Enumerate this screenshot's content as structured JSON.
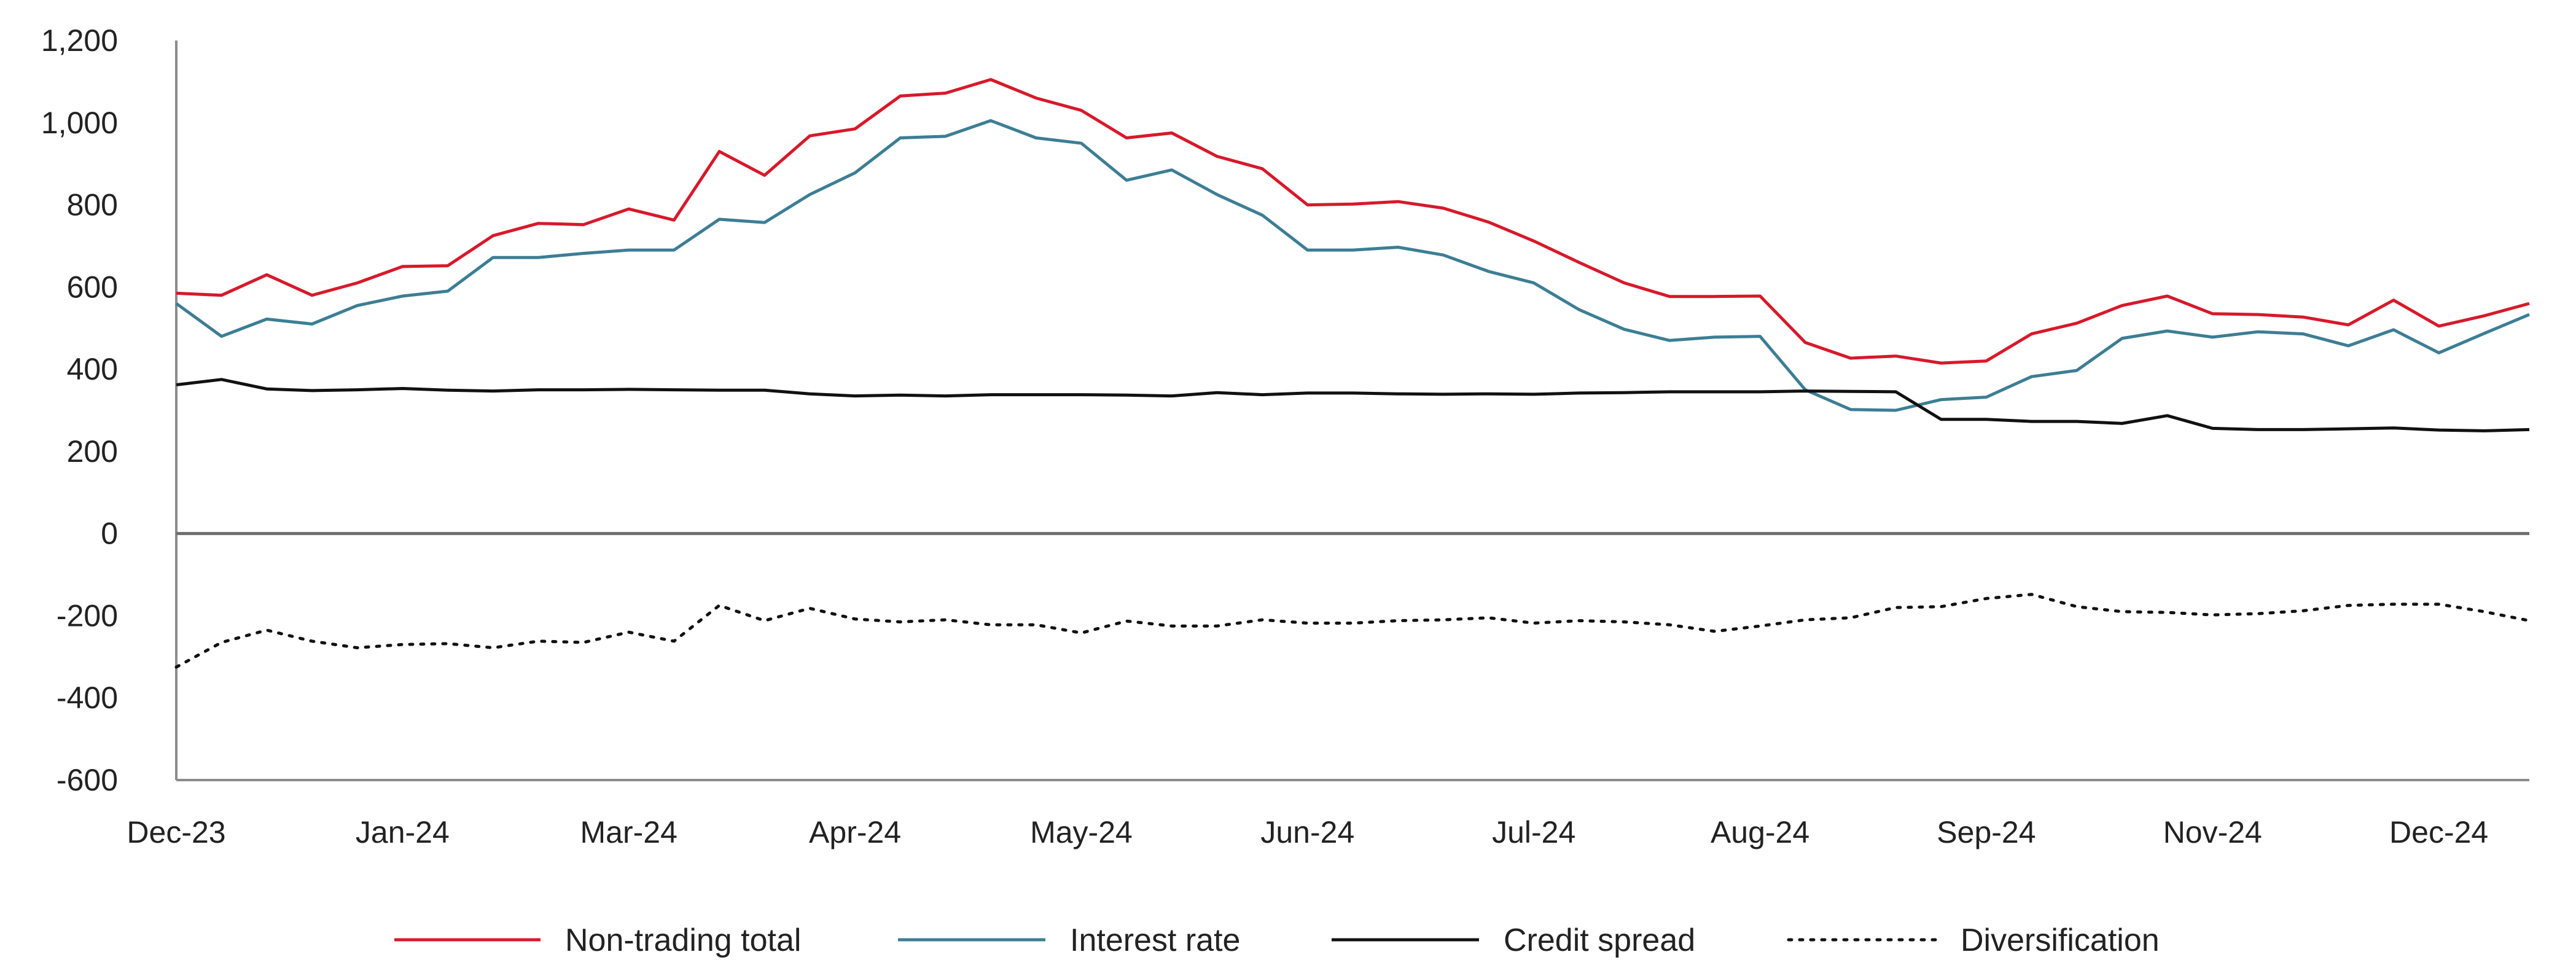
{
  "chart_data": {
    "type": "line",
    "title": "",
    "xlabel": "",
    "ylabel": "",
    "ylim": [
      -600,
      1200
    ],
    "yticks": [
      -600,
      -400,
      -200,
      0,
      200,
      400,
      600,
      800,
      1000,
      1200
    ],
    "ytick_labels": [
      "-600",
      "-400",
      "-200",
      "0",
      "200",
      "400",
      "600",
      "800",
      "1,000",
      "1,200"
    ],
    "x_labels": [
      "Dec-23",
      "Jan-24",
      "Mar-24",
      "Apr-24",
      "May-24",
      "Jun-24",
      "Jul-24",
      "Aug-24",
      "Sep-24",
      "Nov-24",
      "Dec-24"
    ],
    "x_label_positions": [
      0,
      5,
      10,
      15,
      20,
      25,
      30,
      35,
      40,
      45,
      50
    ],
    "x_count": 53,
    "grid": false,
    "zero_line": true,
    "legend_position": "bottom",
    "series": [
      {
        "name": "Non-trading total",
        "color": "#d7192a",
        "style": "solid",
        "values": [
          585,
          580,
          630,
          580,
          610,
          650,
          652,
          725,
          755,
          752,
          790,
          763,
          930,
          872,
          968,
          985,
          1065,
          1072,
          1105,
          1060,
          1030,
          963,
          975,
          918,
          888,
          800,
          802,
          808,
          792,
          758,
          712,
          660,
          610,
          577,
          577,
          578,
          465,
          427,
          432,
          415,
          420,
          486,
          512,
          555,
          578,
          535,
          533,
          527,
          508,
          568,
          505,
          530,
          560
        ]
      },
      {
        "name": "Interest rate",
        "color": "#3c7e94",
        "style": "solid",
        "values": [
          560,
          480,
          522,
          510,
          555,
          578,
          590,
          672,
          672,
          682,
          690,
          690,
          765,
          757,
          825,
          878,
          963,
          967,
          1005,
          963,
          950,
          860,
          885,
          825,
          775,
          690,
          690,
          697,
          678,
          638,
          610,
          545,
          497,
          470,
          478,
          480,
          350,
          302,
          300,
          326,
          332,
          382,
          397,
          475,
          493,
          478,
          491,
          486,
          457,
          496,
          440,
          487,
          533
        ]
      },
      {
        "name": "Credit spread",
        "color": "#111111",
        "style": "solid",
        "values": [
          362,
          375,
          352,
          348,
          350,
          353,
          349,
          347,
          350,
          350,
          351,
          350,
          349,
          349,
          340,
          335,
          337,
          335,
          338,
          338,
          338,
          337,
          335,
          343,
          338,
          342,
          342,
          340,
          339,
          340,
          339,
          342,
          343,
          345,
          345,
          345,
          347,
          346,
          345,
          278,
          278,
          273,
          273,
          268,
          287,
          256,
          253,
          253,
          255,
          257,
          252,
          250,
          253
        ]
      },
      {
        "name": "Diversification",
        "color": "#111111",
        "style": "dotted",
        "values": [
          -325,
          -265,
          -235,
          -262,
          -278,
          -270,
          -268,
          -278,
          -262,
          -265,
          -240,
          -262,
          -175,
          -212,
          -182,
          -208,
          -215,
          -210,
          -222,
          -222,
          -242,
          -213,
          -225,
          -225,
          -210,
          -218,
          -218,
          -212,
          -210,
          -205,
          -218,
          -212,
          -215,
          -222,
          -238,
          -225,
          -210,
          -205,
          -180,
          -178,
          -158,
          -148,
          -178,
          -190,
          -192,
          -198,
          -195,
          -188,
          -175,
          -172,
          -172,
          -190,
          -212
        ]
      }
    ]
  }
}
